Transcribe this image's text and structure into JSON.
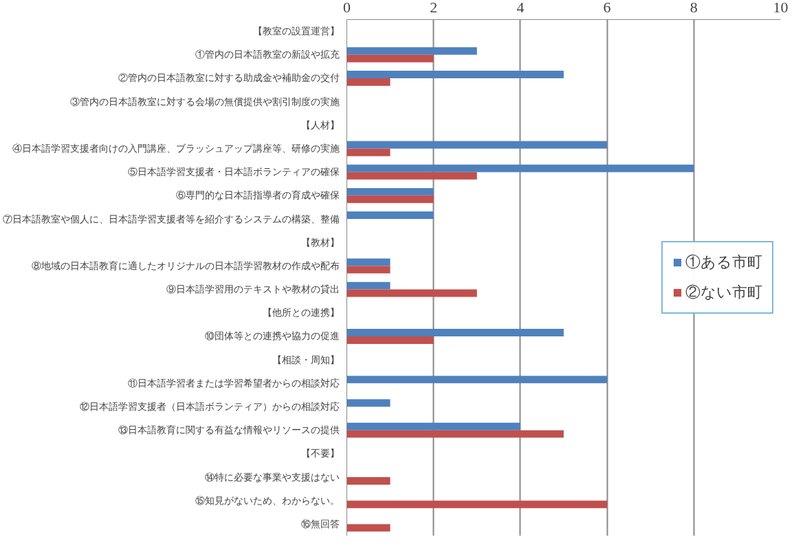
{
  "chart_data": {
    "type": "bar",
    "orientation": "horizontal",
    "categories": [
      "【教室の設置運営】",
      "①管内の日本語教室の新設や拡充",
      "②管内の日本語教室に対する助成金や補助金の交付",
      "③管内の日本語教室に対する会場の無償提供や割引制度の実施",
      "【人材】",
      "④日本語学習支援者向けの入門講座、ブラッシュアップ講座等、研修の実施",
      "⑤日本語学習支援者・日本語ボランティアの確保",
      "⑥専門的な日本語指導者の育成や確保",
      "⑦日本語教室や個人に、日本語学習支援者等を紹介するシステムの構築、整備",
      "【教材】",
      "⑧地域の日本語教育に適したオリジナルの日本語学習教材の作成や配布",
      "⑨日本語学習用のテキストや教材の貸出",
      "【他所との連携】",
      "⑩団体等との連携や協力の促進",
      "【相談・周知】",
      "⑪日本語学習者または学習希望者からの相談対応",
      "⑫日本語学習支援者（日本語ボランティア）からの相談対応",
      "⑬日本語教育に関する有益な情報やリソースの提供",
      "【不要】",
      "⑭特に必要な事業や支援はない",
      "⑮知見がないため、わからない。",
      "⑯無回答"
    ],
    "series": [
      {
        "name": "①ある市町",
        "color": "#4f81bd",
        "values": [
          null,
          3,
          5,
          0,
          null,
          6,
          8,
          2,
          2,
          null,
          1,
          1,
          null,
          5,
          null,
          6,
          1,
          4,
          null,
          0,
          0,
          0
        ]
      },
      {
        "name": "②ない市町",
        "color": "#c0504d",
        "values": [
          null,
          2,
          1,
          0,
          null,
          1,
          3,
          2,
          0,
          null,
          1,
          3,
          null,
          2,
          null,
          0,
          0,
          5,
          null,
          1,
          6,
          1
        ]
      }
    ],
    "xlim": [
      0,
      10
    ],
    "xticks": [
      0,
      2,
      4,
      6,
      8,
      10
    ],
    "grid": "x",
    "legend": "right"
  }
}
